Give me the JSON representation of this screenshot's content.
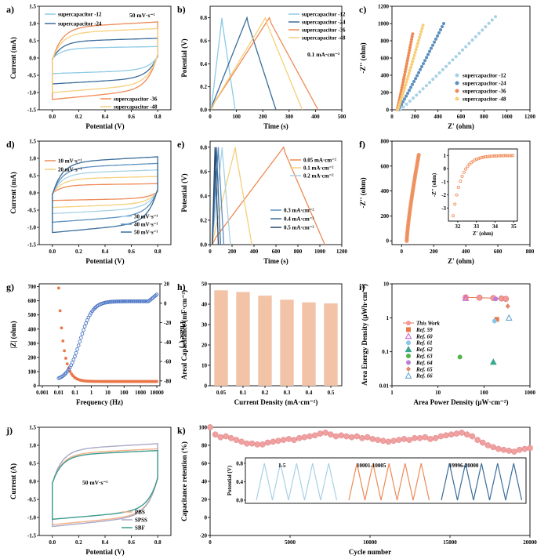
{
  "colors": {
    "c1": "#8ecae6",
    "c2": "#3a6c9a",
    "c3": "#ee8a55",
    "c4": "#f6cf7a",
    "c5": "#a7d1e6",
    "c6": "#5b8fbf",
    "bar": "#f3c3a8",
    "sym": "#e9774a",
    "phase": "#4a74c4",
    "pbs": "#f4b088",
    "spss": "#a9a9c9",
    "sbf": "#3c9a8c"
  },
  "chart_data": [
    {
      "panel": "a)",
      "type": "line",
      "title": "50 mV·s⁻¹",
      "xlabel": "Potential (V)",
      "ylabel": "Current (mA)",
      "xlim": [
        -0.1,
        0.9
      ],
      "ylim": [
        -1.5,
        1.5
      ],
      "xticks": [
        "0.0",
        "0.2",
        "0.4",
        "0.6",
        "0.8"
      ],
      "yticks": [
        "-1.5",
        "-1.0",
        "-0.5",
        "0.0",
        "0.5",
        "1.0",
        "1.5"
      ],
      "series": [
        {
          "name": "supercapacitor -12",
          "ymax": 0.35,
          "ymin": -0.45
        },
        {
          "name": "supercapacitor -24",
          "ymax": 0.6,
          "ymin": -0.75
        },
        {
          "name": "supercapacitor -36",
          "ymax": 1.1,
          "ymin": -1.2
        },
        {
          "name": "supercapacitor -48",
          "ymax": 0.9,
          "ymin": -1.0
        }
      ]
    },
    {
      "panel": "b)",
      "type": "line",
      "title": "0.1 mA·cm⁻²",
      "xlabel": "Time (s)",
      "ylabel": "Potential (V)",
      "xlim": [
        0,
        500
      ],
      "ylim": [
        0,
        0.9
      ],
      "xticks": [
        "0",
        "100",
        "200",
        "300",
        "400",
        "500"
      ],
      "yticks": [
        "0.0",
        "0.2",
        "0.4",
        "0.6",
        "0.8"
      ],
      "series": [
        {
          "name": "supercapacitor -12",
          "peak": 45,
          "end": 95
        },
        {
          "name": "supercapacitor -24",
          "peak": 140,
          "end": 250
        },
        {
          "name": "supercapacitor -36",
          "peak": 225,
          "end": 410
        },
        {
          "name": "supercapacitor -48",
          "peak": 210,
          "end": 350
        }
      ]
    },
    {
      "panel": "c)",
      "type": "scatter",
      "xlabel": "Z' (ohm)",
      "ylabel": "-Z'' (ohm)",
      "xlim": [
        0,
        1200
      ],
      "ylim": [
        0,
        1200
      ],
      "xticks": [
        "0",
        "200",
        "400",
        "600",
        "800",
        "1000",
        "1200"
      ],
      "yticks": [
        "0",
        "200",
        "400",
        "600",
        "800",
        "1000",
        "1200"
      ],
      "series": [
        {
          "name": "supercapacitor -12",
          "x0": 70,
          "x1": 900,
          "y1": 1080
        },
        {
          "name": "supercapacitor -24",
          "x0": 55,
          "x1": 450,
          "y1": 1000
        },
        {
          "name": "supercapacitor -36",
          "x0": 45,
          "x1": 180,
          "y1": 880
        },
        {
          "name": "supercapacitor -48",
          "x0": 50,
          "x1": 270,
          "y1": 980
        }
      ]
    },
    {
      "panel": "d)",
      "type": "line",
      "xlabel": "Potential (V)",
      "ylabel": "Current (mA)",
      "xlim": [
        -0.1,
        0.9
      ],
      "ylim": [
        -1.5,
        1.5
      ],
      "xticks": [
        "0.0",
        "0.2",
        "0.4",
        "0.6",
        "0.8"
      ],
      "yticks": [
        "-1.5",
        "-1.0",
        "-0.5",
        "0.0",
        "0.5",
        "1.0",
        "1.5"
      ],
      "series": [
        {
          "name": "10 mV·s⁻¹",
          "ymax": 0.28,
          "ymin": -0.22
        },
        {
          "name": "20 mV·s⁻¹",
          "ymax": 0.5,
          "ymin": -0.42
        },
        {
          "name": "30 mV·s⁻¹",
          "ymax": 0.7,
          "ymin": -0.6
        },
        {
          "name": "40 mV·s⁻¹",
          "ymax": 0.9,
          "ymin": -0.85
        },
        {
          "name": "50 mV·s⁻¹",
          "ymax": 1.1,
          "ymin": -1.15
        }
      ]
    },
    {
      "panel": "e)",
      "type": "line",
      "xlabel": "Time (s)",
      "ylabel": "Potential (V)",
      "xlim": [
        0,
        1200
      ],
      "ylim": [
        0,
        0.85
      ],
      "xticks": [
        "0",
        "200",
        "400",
        "600",
        "800",
        "1000",
        "1200"
      ],
      "yticks": [
        "0.0",
        "0.2",
        "0.4",
        "0.6",
        "0.8"
      ],
      "series": [
        {
          "name": "0.05 mA·cm⁻²",
          "peak": 670,
          "end": 1045
        },
        {
          "name": "0.1 mA·cm⁻²",
          "peak": 230,
          "end": 380
        },
        {
          "name": "0.2 mA·cm⁻²",
          "peak": 110,
          "end": 185
        },
        {
          "name": "0.3 mA·cm⁻²",
          "peak": 75,
          "end": 125
        },
        {
          "name": "0.4 mA·cm⁻²",
          "peak": 58,
          "end": 95
        },
        {
          "name": "0.5 mA·cm⁻²",
          "peak": 45,
          "end": 75
        }
      ]
    },
    {
      "panel": "f)",
      "type": "scatter",
      "xlabel": "Z' (ohm)",
      "ylabel": "-Z'' (ohm)",
      "xlim": [
        0,
        800
      ],
      "ylim": [
        0,
        800
      ],
      "xticks": [
        "0",
        "200",
        "400",
        "600",
        "800"
      ],
      "yticks": [
        "0",
        "200",
        "400",
        "600",
        "800"
      ],
      "inset": {
        "xlabel": "Z' (ohm)",
        "ylabel": "-Z'' (ohm)",
        "xlim": [
          31.5,
          35.2
        ],
        "ylim": [
          -4,
          1.5
        ],
        "xticks": [
          "32",
          "33",
          "34",
          "35"
        ],
        "yticks": [
          "-3",
          "-2",
          "-1",
          "0",
          "1"
        ]
      }
    },
    {
      "panel": "g)",
      "type": "scatter",
      "xlabel": "Frequency (Hz)",
      "ylabel": "|Z| (ohm)",
      "y2label": "Phase (°)",
      "xticks": [
        "0.001",
        "0.01",
        "0.1",
        "1",
        "10",
        "100",
        "1000",
        "10000"
      ],
      "yticks": [
        "0",
        "100",
        "200",
        "300",
        "400",
        "500",
        "600",
        "700"
      ],
      "y2ticks": [
        "20",
        "0",
        "-20",
        "-40",
        "-60",
        "-80"
      ],
      "ylim": [
        0,
        720
      ],
      "y2lim": [
        -85,
        20
      ]
    },
    {
      "panel": "h)",
      "type": "bar",
      "xlabel": "Current Density (mA·cm⁻²)",
      "ylabel": "Areal Capacitance (mF·cm⁻²)",
      "categories": [
        "0.05",
        "0.1",
        "0.2",
        "0.3",
        "0.4",
        "0.5"
      ],
      "values": [
        46.8,
        46.0,
        44.2,
        42.2,
        40.9,
        40.4
      ],
      "ylim": [
        0,
        50
      ],
      "yticks": [
        "0",
        "10",
        "20",
        "30",
        "40",
        "50"
      ]
    },
    {
      "panel": "i)",
      "type": "scatter",
      "xlabel": "Area Power Density (μW·cm⁻²)",
      "ylabel": "Area Energy Density (μWh·cm⁻²)",
      "xticks": [
        "1",
        "10",
        "100",
        "1000"
      ],
      "yticks": [
        "0.01",
        "0.1",
        "1",
        "10"
      ],
      "series": [
        {
          "name": "This Work",
          "x": [
            40,
            80,
            160,
            240,
            300
          ],
          "y": [
            4.0,
            3.9,
            3.8,
            3.7,
            3.6
          ]
        },
        {
          "name": "Ref. 59",
          "x": [
            190
          ],
          "y": [
            0.9
          ]
        },
        {
          "name": "Ref. 60",
          "x": [
            40
          ],
          "y": [
            3.8
          ]
        },
        {
          "name": "Ref. 61",
          "x": [
            170
          ],
          "y": [
            0.8
          ]
        },
        {
          "name": "Ref. 62",
          "x": [
            160
          ],
          "y": [
            0.05
          ]
        },
        {
          "name": "Ref. 63",
          "x": [
            30
          ],
          "y": [
            0.07
          ]
        },
        {
          "name": "Ref. 64",
          "x": [
            180
          ],
          "y": [
            3.6
          ]
        },
        {
          "name": "Ref. 65",
          "x": [
            330
          ],
          "y": [
            2.2
          ]
        },
        {
          "name": "Ref. 66",
          "x": [
            350
          ],
          "y": [
            1.0
          ]
        }
      ]
    },
    {
      "panel": "j)",
      "type": "line",
      "title": "50 mV·s⁻¹",
      "xlabel": "Potential (V)",
      "ylabel": "Current (A)",
      "xlim": [
        -0.1,
        0.9
      ],
      "ylim": [
        -1.5,
        1.5
      ],
      "xticks": [
        "0.0",
        "0.2",
        "0.4",
        "0.6",
        "0.8"
      ],
      "yticks": [
        "-1.5",
        "-1.0",
        "-0.5",
        "0.0",
        "0.5",
        "1.0",
        "1.5"
      ],
      "series": [
        {
          "name": "PBS",
          "ymax": 0.95,
          "ymin": -1.2
        },
        {
          "name": "SPSS",
          "ymax": 1.1,
          "ymin": -1.25
        },
        {
          "name": "SBF",
          "ymax": 0.9,
          "ymin": -1.05
        }
      ]
    },
    {
      "panel": "k)",
      "type": "scatter",
      "xlabel": "Cycle number",
      "ylabel": "Capacitance retention (%)",
      "xlim": [
        0,
        20000
      ],
      "ylim": [
        -20,
        100
      ],
      "xticks": [
        "0",
        "5000",
        "10000",
        "15000",
        "20000"
      ],
      "yticks": [
        "-20",
        "0",
        "20",
        "40",
        "60",
        "80",
        "100"
      ],
      "values": [
        100,
        92,
        89,
        90,
        88,
        86,
        84,
        82,
        82,
        81,
        81,
        83,
        84,
        85,
        86,
        87,
        86,
        88,
        89,
        90,
        91,
        93,
        94,
        92,
        90,
        91,
        90,
        89,
        90,
        88,
        89,
        87,
        86,
        85,
        84,
        85,
        86,
        87,
        86,
        88,
        88,
        89,
        87,
        88,
        90,
        91,
        92,
        93,
        94,
        92,
        90,
        86,
        83,
        80,
        78,
        76,
        75,
        74,
        73,
        75,
        76,
        77
      ],
      "inset": {
        "ylabel": "Potential (V)",
        "yticks": [
          "0.0",
          "0.4",
          "0.8"
        ],
        "labels": [
          "1-5",
          "10001-10005",
          "19996-20000"
        ]
      }
    }
  ]
}
